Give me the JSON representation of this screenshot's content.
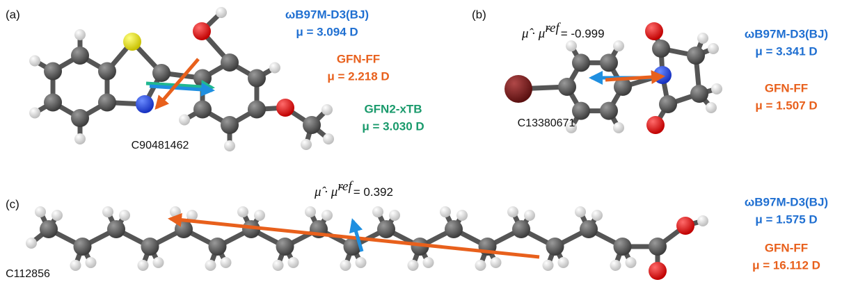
{
  "panels": [
    {
      "label": "(a)",
      "molecule_id": "C90481462",
      "methods": [
        {
          "name": "ωB97M-D3(BJ)",
          "dipole": "μ = 3.094 D"
        },
        {
          "name": "GFN-FF",
          "dipole": "μ = 2.218 D"
        },
        {
          "name": "GFN2-xTB",
          "dipole": "μ = 3.030 D"
        }
      ]
    },
    {
      "label": "(b)",
      "molecule_id": "C13380671",
      "projection": {
        "expression": "μ̂ · μ̂",
        "superscript": "ref",
        "value": "= -0.999"
      },
      "methods": [
        {
          "name": "ωB97M-D3(BJ)",
          "dipole": "μ = 3.341 D"
        },
        {
          "name": "GFN-FF",
          "dipole": "μ = 1.507 D"
        }
      ]
    },
    {
      "label": "(c)",
      "molecule_id": "C112856",
      "projection": {
        "expression": "μ̂ · μ̂",
        "superscript": "ref",
        "value": "= 0.392"
      },
      "methods": [
        {
          "name": "ωB97M-D3(BJ)",
          "dipole": "μ = 1.575 D"
        },
        {
          "name": "GFN-FF",
          "dipole": "μ = 16.112 D"
        }
      ]
    }
  ]
}
